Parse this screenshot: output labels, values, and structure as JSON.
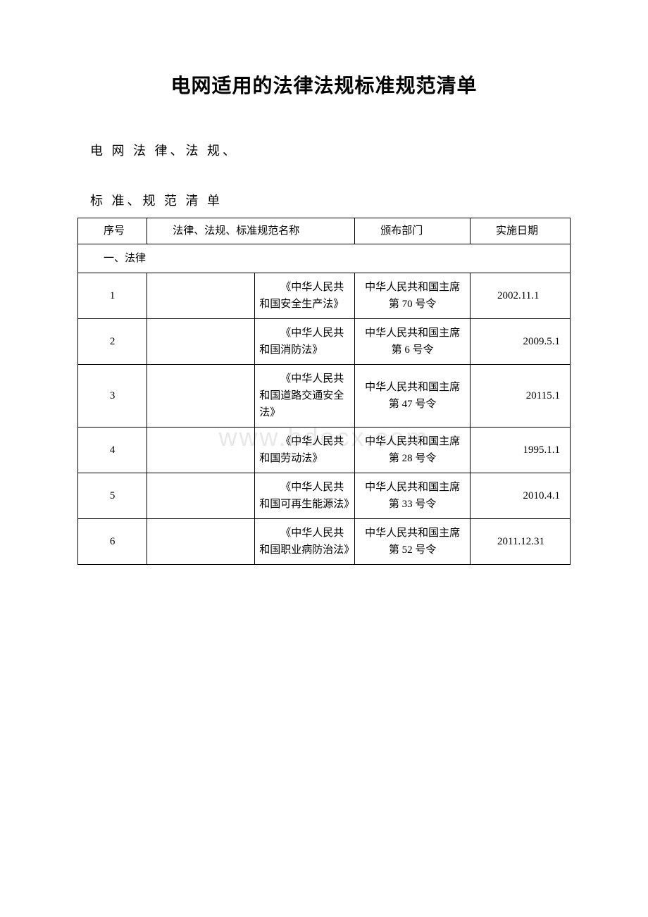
{
  "document": {
    "title": "电网适用的法律法规标准规范清单",
    "subtitle_line1": "电 网 法 律、法 规、",
    "subtitle_line2": "标 准、规 范 清 单",
    "watermark": "www.bdocx.com"
  },
  "table": {
    "headers": {
      "seq": "序号",
      "name": "法律、法规、标准规范名称",
      "dept": "颁布部门",
      "date": "实施日期"
    },
    "section_header": "一、法律",
    "rows": [
      {
        "seq": "1",
        "name": "《中华人民共和国安全生产法》",
        "dept": "中华人民共和国主席第 70 号令",
        "date": "2002.11.1",
        "date_wrap": true
      },
      {
        "seq": "2",
        "name": "《中华人民共和国消防法》",
        "dept": "中华人民共和国主席第 6 号令",
        "date": "2009.5.1",
        "date_wrap": false
      },
      {
        "seq": "3",
        "name": "《中华人民共和国道路交通安全法》",
        "dept": "中华人民共和国主席第 47 号令",
        "date": "20115.1",
        "date_wrap": false
      },
      {
        "seq": "4",
        "name": "《中华人民共和国劳动法》",
        "dept": "中华人民共和国主席第 28 号令",
        "date": "1995.1.1",
        "date_wrap": false
      },
      {
        "seq": "5",
        "name": "《中华人民共和国可再生能源法》",
        "dept": "中华人民共和国主席第 33 号令",
        "date": "2010.4.1",
        "date_wrap": false
      },
      {
        "seq": "6",
        "name": "《中华人民共和国职业病防治法》",
        "dept": "中华人民共和国主席第 52 号令",
        "date": "2011.12.31",
        "date_wrap": true
      }
    ]
  },
  "style": {
    "background_color": "#ffffff",
    "text_color": "#000000",
    "border_color": "#000000",
    "watermark_color": "#e8e8e8",
    "title_fontsize": 28,
    "body_fontsize": 15,
    "subtitle_fontsize": 18
  }
}
